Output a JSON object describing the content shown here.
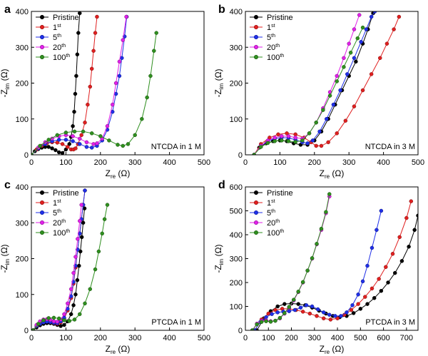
{
  "figure": {
    "panels_order": [
      "a",
      "b",
      "c",
      "d"
    ]
  },
  "series_colors": {
    "Pristine": "#000000",
    "1st": "#e01f1f",
    "5th": "#1f2fe8",
    "20th": "#e020e8",
    "100th": "#2f8f1f"
  },
  "chart_data": [
    {
      "type": "scatter",
      "panel_letter": "a",
      "annotation": "NTCDA in 1 M",
      "xlabel": "Zre (Ω)",
      "ylabel": "-Zim (Ω)",
      "xlim": [
        0,
        500
      ],
      "ylim": [
        0,
        400
      ],
      "xticks": [
        0,
        100,
        200,
        300,
        400,
        500
      ],
      "yticks": [
        0,
        100,
        200,
        300,
        400
      ],
      "legend_position": "top-left",
      "series": [
        {
          "name": "Pristine",
          "x": [
            0,
            10,
            20,
            30,
            40,
            50,
            60,
            70,
            80,
            90,
            100,
            110,
            115,
            120,
            124,
            127,
            130,
            133,
            136,
            140
          ],
          "y": [
            0,
            10,
            16,
            20,
            22,
            22,
            18,
            13,
            7,
            5,
            15,
            30,
            50,
            80,
            120,
            170,
            220,
            280,
            340,
            395
          ]
        },
        {
          "name": "1st",
          "x": [
            0,
            15,
            30,
            45,
            60,
            75,
            90,
            105,
            115,
            122,
            128,
            135,
            145,
            155,
            163,
            170,
            175,
            180,
            185,
            190
          ],
          "y": [
            0,
            15,
            25,
            32,
            35,
            34,
            30,
            22,
            15,
            15,
            18,
            30,
            55,
            90,
            140,
            190,
            240,
            290,
            340,
            385
          ]
        },
        {
          "name": "5th",
          "x": [
            0,
            20,
            40,
            60,
            80,
            100,
            120,
            140,
            160,
            175,
            190,
            205,
            220,
            235,
            245,
            255,
            262,
            270,
            276
          ],
          "y": [
            0,
            18,
            30,
            38,
            42,
            42,
            38,
            30,
            22,
            20,
            25,
            40,
            70,
            120,
            170,
            220,
            270,
            330,
            385
          ]
        },
        {
          "name": "20th",
          "x": [
            0,
            20,
            40,
            60,
            80,
            100,
            120,
            140,
            160,
            180,
            190,
            205,
            220,
            235,
            245,
            255,
            265,
            275
          ],
          "y": [
            0,
            20,
            35,
            45,
            52,
            55,
            52,
            45,
            35,
            30,
            32,
            45,
            80,
            140,
            200,
            260,
            320,
            385
          ]
        },
        {
          "name": "100th",
          "x": [
            0,
            25,
            50,
            75,
            100,
            125,
            150,
            175,
            200,
            225,
            250,
            265,
            280,
            300,
            320,
            335,
            345,
            355,
            362
          ],
          "y": [
            0,
            25,
            42,
            55,
            62,
            65,
            65,
            60,
            52,
            40,
            28,
            25,
            30,
            55,
            100,
            160,
            220,
            290,
            340
          ]
        }
      ]
    },
    {
      "type": "scatter",
      "panel_letter": "b",
      "annotation": "NTCDA in 3 M",
      "xlabel": "Zre (Ω)",
      "ylabel": "-Zim (Ω)",
      "xlim": [
        0,
        500
      ],
      "ylim": [
        0,
        400
      ],
      "xticks": [
        0,
        100,
        200,
        300,
        400,
        500
      ],
      "yticks": [
        0,
        100,
        200,
        300,
        400
      ],
      "legend_position": "top-left",
      "series": [
        {
          "name": "Pristine",
          "x": [
            25,
            40,
            60,
            80,
            100,
            120,
            140,
            160,
            180,
            200,
            220,
            240,
            260,
            280,
            300,
            320,
            340,
            355,
            370
          ],
          "y": [
            0,
            20,
            32,
            38,
            40,
            38,
            32,
            28,
            28,
            40,
            65,
            100,
            140,
            180,
            220,
            260,
            310,
            350,
            395
          ]
        },
        {
          "name": "1st",
          "x": [
            25,
            45,
            70,
            95,
            120,
            145,
            170,
            190,
            205,
            220,
            240,
            265,
            290,
            315,
            340,
            365,
            390,
            410,
            430,
            445
          ],
          "y": [
            0,
            30,
            48,
            57,
            60,
            57,
            48,
            35,
            25,
            25,
            35,
            60,
            95,
            135,
            180,
            225,
            270,
            310,
            350,
            385
          ]
        },
        {
          "name": "5th",
          "x": [
            25,
            45,
            65,
            85,
            105,
            125,
            145,
            165,
            180,
            195,
            215,
            235,
            255,
            275,
            295,
            315,
            335,
            350,
            365,
            375
          ],
          "y": [
            0,
            25,
            38,
            45,
            48,
            47,
            42,
            35,
            32,
            40,
            65,
            100,
            140,
            180,
            225,
            270,
            315,
            350,
            385,
            400
          ]
        },
        {
          "name": "20th",
          "x": [
            25,
            45,
            65,
            85,
            105,
            125,
            145,
            165,
            185,
            205,
            225,
            245,
            265,
            285,
            300,
            315,
            330
          ],
          "y": [
            0,
            25,
            40,
            48,
            52,
            52,
            48,
            45,
            60,
            90,
            130,
            175,
            220,
            270,
            310,
            350,
            390
          ]
        },
        {
          "name": "100th",
          "x": [
            25,
            45,
            65,
            85,
            105,
            125,
            145,
            165,
            185,
            205,
            225,
            245,
            265,
            285,
            305,
            325,
            340
          ],
          "y": [
            0,
            22,
            33,
            38,
            40,
            38,
            36,
            40,
            60,
            90,
            125,
            165,
            205,
            245,
            285,
            325,
            355
          ]
        }
      ]
    },
    {
      "type": "scatter",
      "panel_letter": "c",
      "annotation": "PTCDA in 1 M",
      "xlabel": "Zre (Ω)",
      "ylabel": "-Zim (Ω)",
      "xlim": [
        0,
        500
      ],
      "ylim": [
        0,
        400
      ],
      "xticks": [
        0,
        100,
        200,
        300,
        400,
        500
      ],
      "yticks": [
        0,
        100,
        200,
        300,
        400
      ],
      "legend_position": "top-left",
      "series": [
        {
          "name": "Pristine",
          "x": [
            5,
            15,
            25,
            35,
            45,
            55,
            65,
            75,
            85,
            95,
            105,
            115,
            122,
            128,
            133,
            138,
            142,
            146,
            150,
            154
          ],
          "y": [
            0,
            8,
            14,
            18,
            20,
            20,
            18,
            15,
            12,
            15,
            25,
            45,
            70,
            100,
            140,
            180,
            220,
            260,
            300,
            340
          ]
        },
        {
          "name": "1st",
          "x": [
            5,
            15,
            25,
            35,
            45,
            55,
            65,
            75,
            85,
            95,
            105,
            115,
            122,
            128,
            134,
            140,
            145,
            150,
            155
          ],
          "y": [
            0,
            12,
            20,
            24,
            26,
            24,
            20,
            18,
            22,
            32,
            55,
            90,
            130,
            175,
            225,
            270,
            310,
            350,
            390
          ]
        },
        {
          "name": "5th",
          "x": [
            5,
            15,
            25,
            35,
            45,
            55,
            65,
            75,
            85,
            95,
            105,
            115,
            122,
            128,
            134,
            140,
            145,
            150,
            155
          ],
          "y": [
            0,
            12,
            18,
            22,
            24,
            23,
            21,
            20,
            25,
            35,
            60,
            95,
            135,
            180,
            225,
            270,
            310,
            350,
            390
          ]
        },
        {
          "name": "20th",
          "x": [
            5,
            15,
            25,
            35,
            45,
            55,
            65,
            75,
            85,
            95,
            105,
            115,
            122,
            128,
            134,
            140,
            145
          ],
          "y": [
            0,
            15,
            25,
            30,
            31,
            29,
            25,
            24,
            30,
            45,
            75,
            115,
            160,
            205,
            255,
            305,
            350
          ]
        },
        {
          "name": "100th",
          "x": [
            5,
            20,
            35,
            50,
            65,
            80,
            95,
            110,
            125,
            140,
            155,
            170,
            185,
            195,
            205,
            212,
            220
          ],
          "y": [
            0,
            18,
            28,
            34,
            35,
            33,
            28,
            26,
            30,
            45,
            75,
            115,
            170,
            220,
            270,
            310,
            350
          ]
        }
      ]
    },
    {
      "type": "scatter",
      "panel_letter": "d",
      "annotation": "PTCDA in 3 M",
      "xlabel": "Zre (Ω)",
      "ylabel": "-Zim (Ω)",
      "xlim": [
        0,
        750
      ],
      "ylim": [
        0,
        600
      ],
      "xticks": [
        0,
        100,
        200,
        300,
        400,
        500,
        600,
        700
      ],
      "yticks": [
        0,
        100,
        200,
        300,
        400,
        500,
        600
      ],
      "legend_position": "top-left",
      "series": [
        {
          "name": "Pristine",
          "x": [
            50,
            80,
            110,
            140,
            170,
            200,
            230,
            260,
            290,
            320,
            350,
            380,
            410,
            440,
            470,
            500,
            530,
            560,
            590,
            620,
            650,
            680,
            710,
            735,
            750
          ],
          "y": [
            0,
            50,
            80,
            100,
            110,
            112,
            110,
            105,
            95,
            82,
            70,
            60,
            55,
            60,
            72,
            90,
            110,
            135,
            165,
            200,
            240,
            290,
            350,
            420,
            480
          ]
        },
        {
          "name": "1st",
          "x": [
            40,
            70,
            100,
            130,
            160,
            190,
            220,
            250,
            280,
            310,
            340,
            370,
            400,
            430,
            460,
            490,
            520,
            550,
            580,
            610,
            640,
            670,
            700,
            720
          ],
          "y": [
            0,
            45,
            70,
            85,
            90,
            90,
            85,
            78,
            70,
            60,
            50,
            45,
            50,
            65,
            85,
            110,
            140,
            175,
            215,
            265,
            320,
            390,
            470,
            540
          ]
        },
        {
          "name": "5th",
          "x": [
            40,
            65,
            90,
            115,
            140,
            165,
            190,
            215,
            240,
            265,
            290,
            315,
            340,
            365,
            390,
            415,
            440,
            465,
            490,
            510,
            530,
            550,
            570,
            590
          ],
          "y": [
            0,
            35,
            55,
            68,
            75,
            78,
            80,
            85,
            95,
            105,
            100,
            88,
            75,
            65,
            60,
            60,
            75,
            105,
            150,
            205,
            270,
            345,
            420,
            500
          ]
        },
        {
          "name": "20th",
          "x": [
            30,
            50,
            70,
            90,
            110,
            130,
            150,
            170,
            190,
            210,
            230,
            250,
            270,
            290,
            310,
            330,
            350,
            365
          ],
          "y": [
            0,
            28,
            40,
            42,
            38,
            40,
            50,
            70,
            95,
            125,
            160,
            200,
            250,
            300,
            360,
            420,
            490,
            560
          ]
        },
        {
          "name": "100th",
          "x": [
            30,
            50,
            70,
            90,
            110,
            130,
            150,
            170,
            190,
            210,
            230,
            250,
            270,
            290,
            310,
            330,
            350,
            365
          ],
          "y": [
            0,
            25,
            35,
            38,
            36,
            40,
            52,
            72,
            98,
            128,
            162,
            202,
            250,
            302,
            362,
            425,
            495,
            570
          ]
        }
      ]
    }
  ]
}
